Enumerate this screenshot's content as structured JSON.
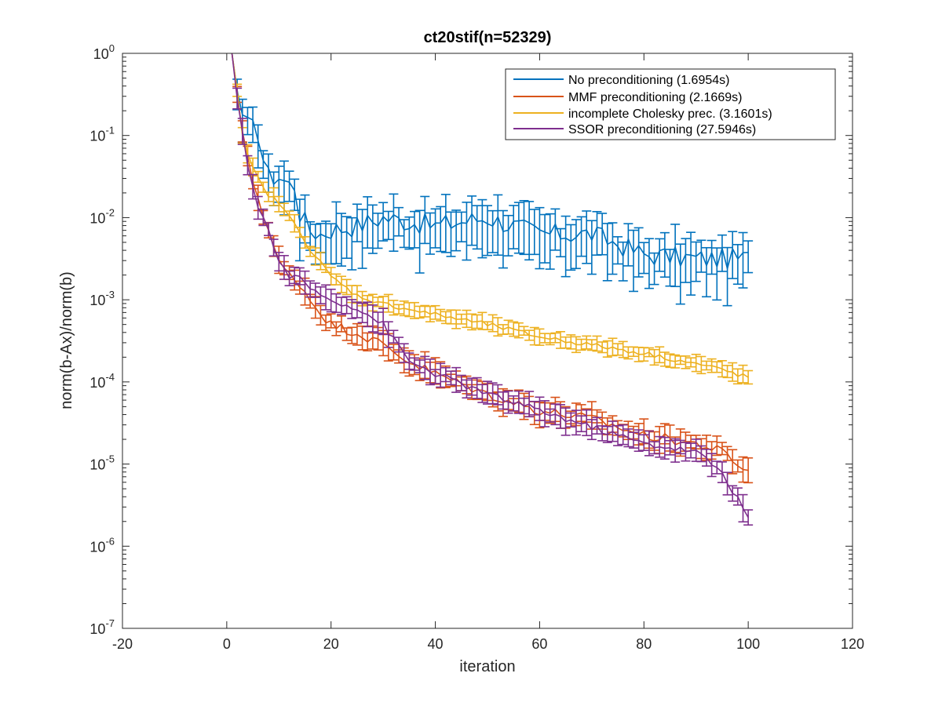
{
  "chart_data": {
    "type": "line",
    "title": "ct20stif(n=52329)",
    "xlabel": "iteration",
    "ylabel": "norm(b-Ax)/norm(b)",
    "xlim": [
      -20,
      120
    ],
    "ylim_log10": [
      -7,
      0
    ],
    "yscale": "log",
    "xticks": [
      -20,
      0,
      20,
      40,
      60,
      80,
      100,
      120
    ],
    "xtick_labels": [
      "-20",
      "0",
      "20",
      "40",
      "60",
      "80",
      "100",
      "120"
    ],
    "ytick_exponents": [
      -7,
      -6,
      -5,
      -4,
      -3,
      -2,
      -1,
      0
    ],
    "ytick_base": "10",
    "ytick_exp_labels": [
      "-7",
      "-6",
      "-5",
      "-4",
      "-3",
      "-2",
      "-1",
      "0"
    ],
    "legend_position": "top-right",
    "error_bars": true,
    "series": [
      {
        "name": "No preconditioning (1.6954s)",
        "color": "#0072BD",
        "anchors": [
          [
            1,
            0.0
          ],
          [
            2,
            -0.45
          ],
          [
            3,
            -0.75
          ],
          [
            4,
            -0.88
          ],
          [
            5,
            -0.92
          ],
          [
            6,
            -0.95
          ],
          [
            7,
            -1.28
          ],
          [
            8,
            -1.5
          ],
          [
            9,
            -1.5
          ],
          [
            10,
            -1.5
          ],
          [
            12,
            -1.6
          ],
          [
            13,
            -1.6
          ],
          [
            14,
            -1.95
          ],
          [
            16,
            -2.15
          ],
          [
            18,
            -2.2
          ],
          [
            20,
            -2.15
          ],
          [
            25,
            -2.1
          ],
          [
            30,
            -2.0
          ],
          [
            40,
            -2.1
          ],
          [
            50,
            -2.0
          ],
          [
            60,
            -2.2
          ],
          [
            70,
            -2.2
          ],
          [
            80,
            -2.45
          ],
          [
            90,
            -2.5
          ],
          [
            100,
            -2.5
          ]
        ],
        "noise": 0.13,
        "err_lo": 0.35,
        "err_hi": 0.2
      },
      {
        "name": "MMF preconditioning (2.1669s)",
        "color": "#D95319",
        "anchors": [
          [
            1,
            0.0
          ],
          [
            2,
            -0.5
          ],
          [
            3,
            -0.95
          ],
          [
            4,
            -1.3
          ],
          [
            5,
            -1.55
          ],
          [
            6,
            -1.75
          ],
          [
            7,
            -1.95
          ],
          [
            8,
            -2.15
          ],
          [
            9,
            -2.35
          ],
          [
            10,
            -2.55
          ],
          [
            12,
            -2.7
          ],
          [
            14,
            -2.8
          ],
          [
            16,
            -3.0
          ],
          [
            18,
            -3.15
          ],
          [
            20,
            -3.3
          ],
          [
            25,
            -3.4
          ],
          [
            30,
            -3.55
          ],
          [
            35,
            -3.75
          ],
          [
            40,
            -3.9
          ],
          [
            50,
            -4.15
          ],
          [
            60,
            -4.35
          ],
          [
            70,
            -4.45
          ],
          [
            80,
            -4.65
          ],
          [
            90,
            -4.75
          ],
          [
            95,
            -4.85
          ],
          [
            100,
            -5.1
          ]
        ],
        "noise": 0.06,
        "err_lo": 0.12,
        "err_hi": 0.12
      },
      {
        "name": "incomplete Cholesky prec. (3.1601s)",
        "color": "#EDB120",
        "anchors": [
          [
            1,
            0.0
          ],
          [
            2,
            -0.45
          ],
          [
            3,
            -1.0
          ],
          [
            4,
            -1.25
          ],
          [
            5,
            -1.4
          ],
          [
            6,
            -1.52
          ],
          [
            7,
            -1.65
          ],
          [
            8,
            -1.72
          ],
          [
            10,
            -1.82
          ],
          [
            12,
            -2.0
          ],
          [
            14,
            -2.15
          ],
          [
            16,
            -2.4
          ],
          [
            18,
            -2.55
          ],
          [
            20,
            -2.72
          ],
          [
            25,
            -2.95
          ],
          [
            30,
            -3.05
          ],
          [
            40,
            -3.18
          ],
          [
            50,
            -3.3
          ],
          [
            60,
            -3.45
          ],
          [
            70,
            -3.55
          ],
          [
            80,
            -3.65
          ],
          [
            90,
            -3.78
          ],
          [
            95,
            -3.85
          ],
          [
            100,
            -3.95
          ]
        ],
        "noise": 0.03,
        "err_lo": 0.08,
        "err_hi": 0.08
      },
      {
        "name": "SSOR preconditioning (27.5946s)",
        "color": "#7E2F8E",
        "anchors": [
          [
            1,
            0.0
          ],
          [
            2,
            -0.55
          ],
          [
            3,
            -0.95
          ],
          [
            4,
            -1.4
          ],
          [
            5,
            -1.6
          ],
          [
            6,
            -1.85
          ],
          [
            7,
            -2.0
          ],
          [
            8,
            -2.15
          ],
          [
            9,
            -2.35
          ],
          [
            10,
            -2.55
          ],
          [
            12,
            -2.7
          ],
          [
            14,
            -2.75
          ],
          [
            16,
            -2.85
          ],
          [
            18,
            -2.95
          ],
          [
            20,
            -3.0
          ],
          [
            25,
            -3.1
          ],
          [
            30,
            -3.3
          ],
          [
            35,
            -3.75
          ],
          [
            40,
            -3.9
          ],
          [
            50,
            -4.15
          ],
          [
            60,
            -4.35
          ],
          [
            70,
            -4.55
          ],
          [
            80,
            -4.75
          ],
          [
            90,
            -4.85
          ],
          [
            95,
            -5.1
          ],
          [
            100,
            -5.65
          ]
        ],
        "noise": 0.04,
        "err_lo": 0.12,
        "err_hi": 0.12
      }
    ]
  }
}
